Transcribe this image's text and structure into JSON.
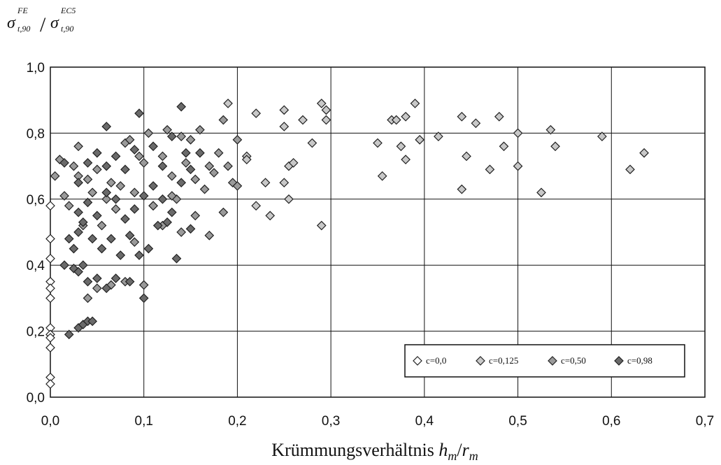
{
  "chart_data": {
    "type": "scatter",
    "xlabel": "Krümmungsverhältnis h_m/r_m",
    "xlabel_parts": {
      "main": "Krümmungsverhältnis ",
      "h": "h",
      "sub_m1": "m",
      "slash": "/",
      "r": "r",
      "sub_m2": "m"
    },
    "ylabel": "σ_t,90^FE / σ_t,90^EC5",
    "ylabel_parts": {
      "sigma": "σ",
      "sup1": "FE",
      "sub1": "t,90",
      "slash": "/",
      "sup2": "EC5",
      "sub2": "t,90"
    },
    "xlim": [
      0,
      0.7
    ],
    "ylim": [
      0,
      1.0
    ],
    "x_ticks": [
      0.0,
      0.1,
      0.2,
      0.3,
      0.4,
      0.5,
      0.6,
      0.7
    ],
    "y_ticks": [
      0.0,
      0.2,
      0.4,
      0.6,
      0.8,
      1.0
    ],
    "x_tick_labels": [
      "0,0",
      "0,1",
      "0,2",
      "0,3",
      "0,4",
      "0,5",
      "0,6",
      "0,7"
    ],
    "y_tick_labels": [
      "0,0",
      "0,2",
      "0,4",
      "0,6",
      "0,8",
      "1,0"
    ],
    "grid": true,
    "legend_position": "bottom-right",
    "series": [
      {
        "name": "c=0,0",
        "color": "#ffffff",
        "points": [
          [
            0,
            0.58
          ],
          [
            0,
            0.48
          ],
          [
            0,
            0.42
          ],
          [
            0,
            0.35
          ],
          [
            0,
            0.33
          ],
          [
            0,
            0.3
          ],
          [
            0,
            0.21
          ],
          [
            0,
            0.19
          ],
          [
            0,
            0.18
          ],
          [
            0,
            0.15
          ],
          [
            0,
            0.06
          ],
          [
            0,
            0.04
          ]
        ]
      },
      {
        "name": "c=0,125",
        "color": "#c8c8c8",
        "points": [
          [
            0.19,
            0.89
          ],
          [
            0.22,
            0.86
          ],
          [
            0.25,
            0.87
          ],
          [
            0.27,
            0.84
          ],
          [
            0.29,
            0.89
          ],
          [
            0.295,
            0.87
          ],
          [
            0.295,
            0.84
          ],
          [
            0.25,
            0.82
          ],
          [
            0.28,
            0.77
          ],
          [
            0.21,
            0.73
          ],
          [
            0.21,
            0.72
          ],
          [
            0.23,
            0.65
          ],
          [
            0.25,
            0.65
          ],
          [
            0.255,
            0.7
          ],
          [
            0.26,
            0.71
          ],
          [
            0.255,
            0.6
          ],
          [
            0.22,
            0.58
          ],
          [
            0.235,
            0.55
          ],
          [
            0.29,
            0.52
          ],
          [
            0.35,
            0.77
          ],
          [
            0.355,
            0.67
          ],
          [
            0.365,
            0.84
          ],
          [
            0.37,
            0.84
          ],
          [
            0.375,
            0.76
          ],
          [
            0.38,
            0.85
          ],
          [
            0.38,
            0.72
          ],
          [
            0.39,
            0.89
          ],
          [
            0.395,
            0.78
          ],
          [
            0.415,
            0.79
          ],
          [
            0.44,
            0.85
          ],
          [
            0.445,
            0.73
          ],
          [
            0.44,
            0.63
          ],
          [
            0.455,
            0.83
          ],
          [
            0.47,
            0.69
          ],
          [
            0.48,
            0.85
          ],
          [
            0.485,
            0.76
          ],
          [
            0.5,
            0.8
          ],
          [
            0.5,
            0.7
          ],
          [
            0.525,
            0.62
          ],
          [
            0.535,
            0.81
          ],
          [
            0.54,
            0.76
          ],
          [
            0.59,
            0.79
          ],
          [
            0.62,
            0.69
          ],
          [
            0.635,
            0.74
          ]
        ]
      },
      {
        "name": "c=0,50",
        "color": "#9a9a9a",
        "points": [
          [
            0.005,
            0.67
          ],
          [
            0.01,
            0.72
          ],
          [
            0.015,
            0.61
          ],
          [
            0.02,
            0.58
          ],
          [
            0.025,
            0.7
          ],
          [
            0.03,
            0.67
          ],
          [
            0.03,
            0.76
          ],
          [
            0.035,
            0.52
          ],
          [
            0.04,
            0.66
          ],
          [
            0.045,
            0.62
          ],
          [
            0.05,
            0.69
          ],
          [
            0.055,
            0.52
          ],
          [
            0.06,
            0.6
          ],
          [
            0.065,
            0.65
          ],
          [
            0.07,
            0.57
          ],
          [
            0.075,
            0.64
          ],
          [
            0.08,
            0.77
          ],
          [
            0.085,
            0.78
          ],
          [
            0.09,
            0.62
          ],
          [
            0.095,
            0.73
          ],
          [
            0.1,
            0.71
          ],
          [
            0.105,
            0.8
          ],
          [
            0.11,
            0.58
          ],
          [
            0.12,
            0.73
          ],
          [
            0.125,
            0.81
          ],
          [
            0.13,
            0.67
          ],
          [
            0.135,
            0.6
          ],
          [
            0.14,
            0.79
          ],
          [
            0.145,
            0.71
          ],
          [
            0.15,
            0.78
          ],
          [
            0.155,
            0.55
          ],
          [
            0.16,
            0.81
          ],
          [
            0.165,
            0.63
          ],
          [
            0.17,
            0.49
          ],
          [
            0.175,
            0.68
          ],
          [
            0.18,
            0.74
          ],
          [
            0.185,
            0.56
          ],
          [
            0.19,
            0.7
          ],
          [
            0.195,
            0.65
          ],
          [
            0.2,
            0.64
          ],
          [
            0.2,
            0.78
          ],
          [
            0.04,
            0.3
          ],
          [
            0.05,
            0.33
          ],
          [
            0.065,
            0.34
          ],
          [
            0.08,
            0.35
          ],
          [
            0.09,
            0.47
          ],
          [
            0.1,
            0.34
          ],
          [
            0.11,
            0.58
          ],
          [
            0.12,
            0.52
          ],
          [
            0.13,
            0.61
          ],
          [
            0.14,
            0.5
          ],
          [
            0.155,
            0.66
          ],
          [
            0.17,
            0.7
          ],
          [
            0.185,
            0.84
          ]
        ]
      },
      {
        "name": "c=0,98",
        "color": "#6a6a6a",
        "points": [
          [
            0.02,
            0.19
          ],
          [
            0.03,
            0.21
          ],
          [
            0.035,
            0.22
          ],
          [
            0.04,
            0.23
          ],
          [
            0.045,
            0.23
          ],
          [
            0.015,
            0.4
          ],
          [
            0.025,
            0.39
          ],
          [
            0.03,
            0.38
          ],
          [
            0.035,
            0.4
          ],
          [
            0.04,
            0.35
          ],
          [
            0.05,
            0.36
          ],
          [
            0.06,
            0.33
          ],
          [
            0.07,
            0.36
          ],
          [
            0.085,
            0.35
          ],
          [
            0.1,
            0.3
          ],
          [
            0.02,
            0.48
          ],
          [
            0.025,
            0.45
          ],
          [
            0.03,
            0.5
          ],
          [
            0.035,
            0.53
          ],
          [
            0.045,
            0.48
          ],
          [
            0.055,
            0.45
          ],
          [
            0.065,
            0.48
          ],
          [
            0.075,
            0.43
          ],
          [
            0.085,
            0.49
          ],
          [
            0.095,
            0.43
          ],
          [
            0.105,
            0.45
          ],
          [
            0.115,
            0.52
          ],
          [
            0.125,
            0.53
          ],
          [
            0.135,
            0.42
          ],
          [
            0.15,
            0.51
          ],
          [
            0.03,
            0.56
          ],
          [
            0.04,
            0.59
          ],
          [
            0.05,
            0.55
          ],
          [
            0.06,
            0.62
          ],
          [
            0.07,
            0.6
          ],
          [
            0.08,
            0.54
          ],
          [
            0.09,
            0.57
          ],
          [
            0.1,
            0.61
          ],
          [
            0.11,
            0.64
          ],
          [
            0.12,
            0.6
          ],
          [
            0.13,
            0.56
          ],
          [
            0.14,
            0.65
          ],
          [
            0.15,
            0.69
          ],
          [
            0.16,
            0.74
          ],
          [
            0.015,
            0.71
          ],
          [
            0.03,
            0.65
          ],
          [
            0.04,
            0.71
          ],
          [
            0.05,
            0.74
          ],
          [
            0.06,
            0.7
          ],
          [
            0.07,
            0.73
          ],
          [
            0.08,
            0.69
          ],
          [
            0.09,
            0.75
          ],
          [
            0.095,
            0.86
          ],
          [
            0.11,
            0.76
          ],
          [
            0.12,
            0.7
          ],
          [
            0.13,
            0.79
          ],
          [
            0.14,
            0.88
          ],
          [
            0.145,
            0.74
          ],
          [
            0.06,
            0.82
          ]
        ]
      }
    ]
  }
}
